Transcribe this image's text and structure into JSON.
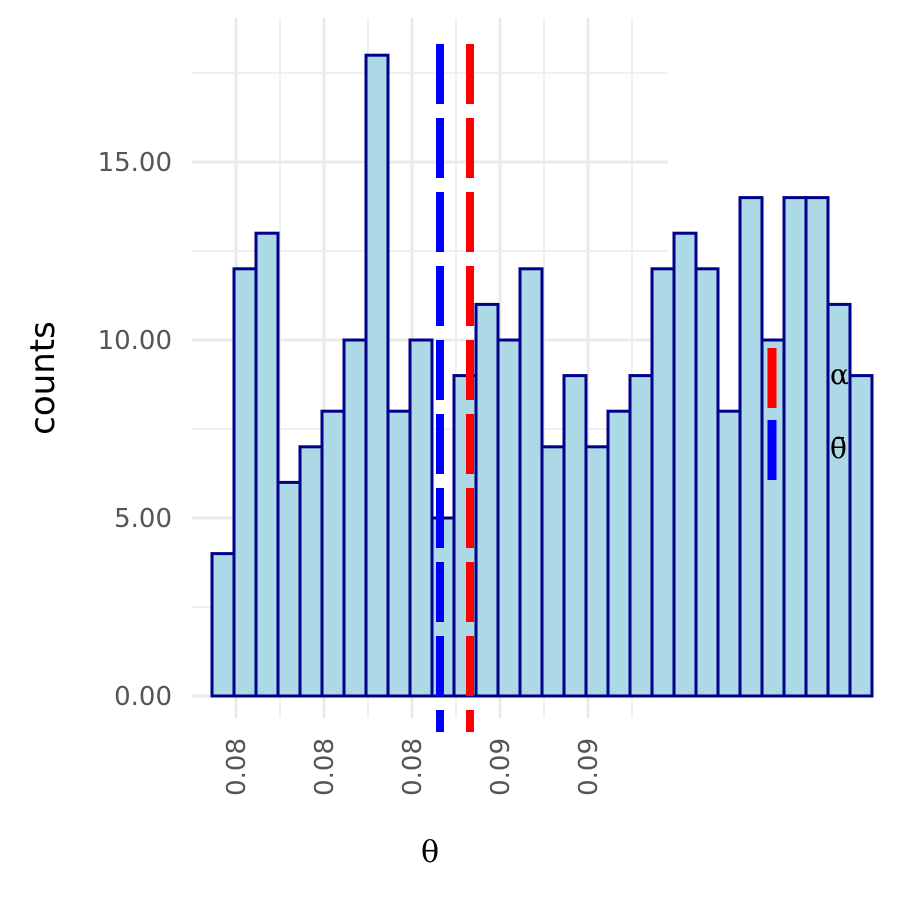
{
  "chart_data": {
    "type": "bar",
    "subtype": "histogram",
    "xlabel": "θ",
    "ylabel": "counts",
    "x_tick_labels": [
      "0.08",
      "0.08",
      "0.08",
      "0.09",
      "0.09"
    ],
    "y_ticks": [
      0,
      5,
      10,
      15
    ],
    "y_tick_labels": [
      "0.00",
      "5.00",
      "10.00",
      "15.00"
    ],
    "ylim": [
      -0.8,
      18.6
    ],
    "counts": [
      4,
      12,
      13,
      6,
      7,
      8,
      10,
      18,
      8,
      10,
      5,
      9,
      11,
      10,
      12,
      7,
      9,
      7,
      8,
      9,
      12,
      13,
      12,
      8,
      14,
      10,
      14,
      14,
      11,
      9
    ],
    "bar_fill": "#ADD8E6",
    "bar_outline": "#00008B",
    "vlines": [
      {
        "name": "α",
        "color": "#FF0000",
        "style": "dashed"
      },
      {
        "name": "θ̄",
        "color": "#0000FF",
        "style": "dashed"
      }
    ],
    "grid": true,
    "legend_position": "right"
  }
}
